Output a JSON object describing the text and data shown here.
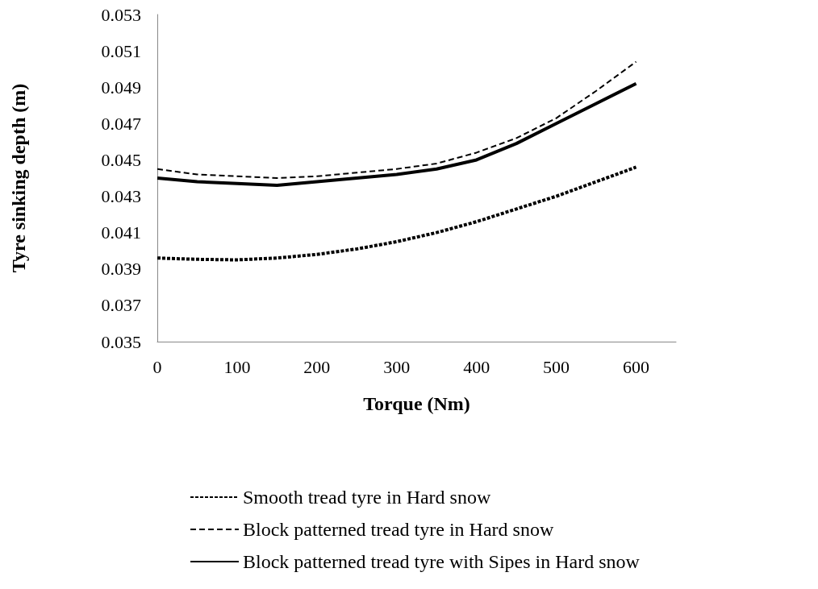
{
  "chart_data": {
    "type": "line",
    "xlabel": "Torque (Nm)",
    "ylabel": "Tyre sinking depth (m)",
    "x": [
      0,
      50,
      100,
      150,
      200,
      250,
      300,
      350,
      400,
      450,
      500,
      550,
      600
    ],
    "xlim": [
      0,
      650
    ],
    "xticks": [
      0,
      100,
      200,
      300,
      400,
      500,
      600
    ],
    "ylim": [
      0.035,
      0.053
    ],
    "yticks": [
      0.035,
      0.037,
      0.039,
      0.041,
      0.043,
      0.045,
      0.047,
      0.049,
      0.051,
      0.053
    ],
    "grid": false,
    "legend": "bottom",
    "marker": "none",
    "series": [
      {
        "name": "Smooth tread tyre in Hard snow",
        "color": "#000000",
        "line_style": "dashed",
        "values": [
          0.0396,
          0.03953,
          0.0395,
          0.0396,
          0.0398,
          0.0401,
          0.0405,
          0.041,
          0.0416,
          0.0423,
          0.043,
          0.0438,
          0.0446
        ]
      },
      {
        "name": "Block patterned tread tyre in Hard snow",
        "color": "#000000",
        "line_style": "dashed",
        "values": [
          0.0445,
          0.0442,
          0.0441,
          0.044,
          0.0441,
          0.0443,
          0.0445,
          0.0448,
          0.0454,
          0.0462,
          0.0473,
          0.0488,
          0.0504
        ]
      },
      {
        "name": "Block patterned tread tyre with Sipes in Hard snow",
        "color": "#000000",
        "line_style": "solid",
        "values": [
          0.044,
          0.0438,
          0.0437,
          0.0436,
          0.0438,
          0.044,
          0.0442,
          0.0445,
          0.045,
          0.0459,
          0.047,
          0.0481,
          0.0492
        ]
      }
    ]
  }
}
